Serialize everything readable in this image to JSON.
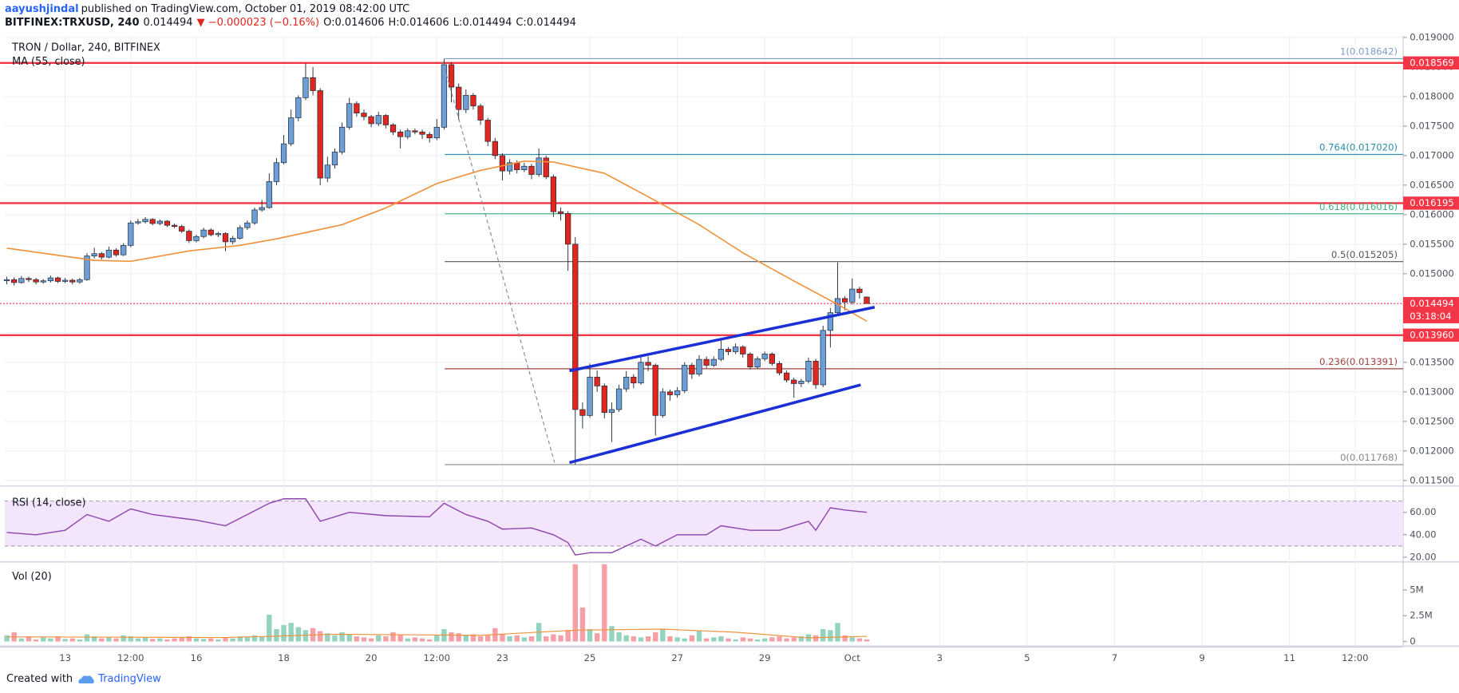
{
  "header": {
    "author": "aayushjindal",
    "published": "published on TradingView.com, October 01, 2019 08:42:00 UTC",
    "symbol": "BITFINEX:TRXUSD, 240",
    "last": "0.014494",
    "change": "▼ −0.000023 (−0.16%)",
    "ohlc": [
      "O:0.014606",
      "H:0.014606",
      "L:0.014494",
      "C:0.014494"
    ]
  },
  "footer": {
    "text": "Created with",
    "logo": "TradingView"
  },
  "chart_data": {
    "type": "candlestick",
    "title": "TRON / Dollar, 240, BITFINEX",
    "ma_label": "MA (55, close)",
    "up_color": "#6d9fd6",
    "down_color": "#e0261f",
    "xlim": [
      -0.3,
      191.6
    ],
    "xticks": [
      {
        "value": 8,
        "label": "13"
      },
      {
        "value": 17,
        "label": "12:00"
      },
      {
        "value": 26,
        "label": "16"
      },
      {
        "value": 38,
        "label": "18"
      },
      {
        "value": 50,
        "label": "20"
      },
      {
        "value": 59,
        "label": "12:00"
      },
      {
        "value": 68,
        "label": "23"
      },
      {
        "value": 80,
        "label": "25"
      },
      {
        "value": 92,
        "label": "27"
      },
      {
        "value": 104,
        "label": "29"
      },
      {
        "value": 116,
        "label": "Oct"
      },
      {
        "value": 128,
        "label": "3"
      },
      {
        "value": 140,
        "label": "5"
      },
      {
        "value": 152,
        "label": "7"
      },
      {
        "value": 164,
        "label": "9"
      },
      {
        "value": 176,
        "label": "11"
      },
      {
        "value": 185,
        "label": "12:00"
      }
    ],
    "ylim": [
      0.011421,
      0.019032
    ],
    "yticks": [
      {
        "value": 0.0115,
        "label": "0.011500"
      },
      {
        "value": 0.012,
        "label": "0.012000"
      },
      {
        "value": 0.0125,
        "label": "0.012500"
      },
      {
        "value": 0.013,
        "label": "0.013000"
      },
      {
        "value": 0.0135,
        "label": "0.013500"
      },
      {
        "value": 0.014,
        "label": "0.014000"
      },
      {
        "value": 0.0145,
        "label": "0.014500"
      },
      {
        "value": 0.015,
        "label": "0.015000"
      },
      {
        "value": 0.0155,
        "label": "0.015500"
      },
      {
        "value": 0.016,
        "label": "0.016000"
      },
      {
        "value": 0.0165,
        "label": "0.016500"
      },
      {
        "value": 0.017,
        "label": "0.017000"
      },
      {
        "value": 0.0175,
        "label": "0.017500"
      },
      {
        "value": 0.018,
        "label": "0.018000"
      },
      {
        "value": 0.0185,
        "label": "0.018500"
      },
      {
        "value": 0.019,
        "label": "0.019000"
      }
    ],
    "grid": true,
    "ohlc": [
      [
        0.01488,
        0.01495,
        0.01482,
        0.0149
      ],
      [
        0.0149,
        0.01494,
        0.0148,
        0.01485
      ],
      [
        0.01485,
        0.01496,
        0.01483,
        0.01492
      ],
      [
        0.01492,
        0.01495,
        0.01486,
        0.0149
      ],
      [
        0.0149,
        0.01493,
        0.01482,
        0.01486
      ],
      [
        0.01486,
        0.01491,
        0.01483,
        0.01488
      ],
      [
        0.01488,
        0.01497,
        0.01485,
        0.01493
      ],
      [
        0.01493,
        0.01495,
        0.01484,
        0.01487
      ],
      [
        0.01487,
        0.01493,
        0.01484,
        0.01489
      ],
      [
        0.01489,
        0.01492,
        0.01482,
        0.01486
      ],
      [
        0.01486,
        0.01493,
        0.01483,
        0.0149
      ],
      [
        0.0149,
        0.01535,
        0.01488,
        0.0153
      ],
      [
        0.0153,
        0.01544,
        0.01526,
        0.01534
      ],
      [
        0.01534,
        0.01537,
        0.01524,
        0.01528
      ],
      [
        0.01528,
        0.01546,
        0.01526,
        0.0154
      ],
      [
        0.0154,
        0.01543,
        0.01529,
        0.01532
      ],
      [
        0.01532,
        0.01552,
        0.0153,
        0.01548
      ],
      [
        0.01548,
        0.0159,
        0.01545,
        0.01586
      ],
      [
        0.01586,
        0.01593,
        0.01583,
        0.01588
      ],
      [
        0.01588,
        0.01596,
        0.01585,
        0.01592
      ],
      [
        0.01592,
        0.01594,
        0.01582,
        0.01585
      ],
      [
        0.01585,
        0.01592,
        0.01582,
        0.01589
      ],
      [
        0.01589,
        0.01591,
        0.01579,
        0.01582
      ],
      [
        0.01582,
        0.01585,
        0.01577,
        0.0158
      ],
      [
        0.0158,
        0.01583,
        0.01569,
        0.01572
      ],
      [
        0.01572,
        0.01575,
        0.01552,
        0.01556
      ],
      [
        0.01556,
        0.01566,
        0.01553,
        0.01563
      ],
      [
        0.01563,
        0.01578,
        0.0156,
        0.01574
      ],
      [
        0.01574,
        0.01577,
        0.01563,
        0.01566
      ],
      [
        0.01566,
        0.01571,
        0.01562,
        0.01568
      ],
      [
        0.01568,
        0.0157,
        0.01538,
        0.01554
      ],
      [
        0.01554,
        0.01564,
        0.0155,
        0.0156
      ],
      [
        0.0156,
        0.01582,
        0.01558,
        0.01578
      ],
      [
        0.01578,
        0.0159,
        0.01574,
        0.01586
      ],
      [
        0.01586,
        0.01612,
        0.01583,
        0.01608
      ],
      [
        0.01608,
        0.01625,
        0.01605,
        0.01612
      ],
      [
        0.01612,
        0.0167,
        0.0161,
        0.01656
      ],
      [
        0.01656,
        0.01696,
        0.0165,
        0.01688
      ],
      [
        0.01688,
        0.01735,
        0.01685,
        0.0172
      ],
      [
        0.0172,
        0.01778,
        0.01716,
        0.01764
      ],
      [
        0.01764,
        0.01802,
        0.01758,
        0.01798
      ],
      [
        0.01798,
        0.01856,
        0.01794,
        0.01832
      ],
      [
        0.01832,
        0.0185,
        0.01802,
        0.0181
      ],
      [
        0.0181,
        0.01814,
        0.0165,
        0.01662
      ],
      [
        0.01662,
        0.01698,
        0.01655,
        0.01684
      ],
      [
        0.01684,
        0.01712,
        0.01678,
        0.01706
      ],
      [
        0.01706,
        0.01756,
        0.01702,
        0.01748
      ],
      [
        0.01748,
        0.01798,
        0.01744,
        0.01788
      ],
      [
        0.01788,
        0.01792,
        0.01766,
        0.01772
      ],
      [
        0.01772,
        0.01778,
        0.0176,
        0.01766
      ],
      [
        0.01766,
        0.01769,
        0.01748,
        0.01754
      ],
      [
        0.01754,
        0.01774,
        0.0175,
        0.01768
      ],
      [
        0.01768,
        0.0177,
        0.01746,
        0.01752
      ],
      [
        0.01752,
        0.01755,
        0.01735,
        0.0174
      ],
      [
        0.0174,
        0.01744,
        0.01712,
        0.01732
      ],
      [
        0.01732,
        0.01746,
        0.01728,
        0.01742
      ],
      [
        0.01742,
        0.01746,
        0.01736,
        0.0174
      ],
      [
        0.0174,
        0.01744,
        0.01728,
        0.01736
      ],
      [
        0.01736,
        0.0174,
        0.01722,
        0.0173
      ],
      [
        0.0173,
        0.01762,
        0.01726,
        0.01748
      ],
      [
        0.01748,
        0.018642,
        0.01744,
        0.01854
      ],
      [
        0.01854,
        0.01858,
        0.0179,
        0.01816
      ],
      [
        0.01816,
        0.01822,
        0.0176,
        0.01778
      ],
      [
        0.01778,
        0.01812,
        0.01772,
        0.01802
      ],
      [
        0.01802,
        0.01806,
        0.01778,
        0.01784
      ],
      [
        0.01784,
        0.01788,
        0.01752,
        0.0176
      ],
      [
        0.0176,
        0.01764,
        0.01716,
        0.01724
      ],
      [
        0.01724,
        0.0173,
        0.01694,
        0.017
      ],
      [
        0.017,
        0.01704,
        0.01658,
        0.01674
      ],
      [
        0.01674,
        0.01694,
        0.01668,
        0.01688
      ],
      [
        0.01688,
        0.01692,
        0.0167,
        0.01676
      ],
      [
        0.01676,
        0.01688,
        0.01672,
        0.01682
      ],
      [
        0.01682,
        0.01686,
        0.0166,
        0.01668
      ],
      [
        0.01668,
        0.01712,
        0.01664,
        0.01696
      ],
      [
        0.01696,
        0.017,
        0.0166,
        0.01664
      ],
      [
        0.01664,
        0.01668,
        0.01596,
        0.01605
      ],
      [
        0.01605,
        0.01612,
        0.0159,
        0.01602
      ],
      [
        0.01602,
        0.01606,
        0.01505,
        0.0155
      ],
      [
        0.0155,
        0.01562,
        0.011768,
        0.0127
      ],
      [
        0.0127,
        0.01282,
        0.01238,
        0.0126
      ],
      [
        0.0126,
        0.01348,
        0.01256,
        0.01325
      ],
      [
        0.01325,
        0.01336,
        0.013,
        0.0131
      ],
      [
        0.0131,
        0.01314,
        0.01255,
        0.01265
      ],
      [
        0.01265,
        0.01282,
        0.01215,
        0.0127
      ],
      [
        0.0127,
        0.01312,
        0.01266,
        0.01305
      ],
      [
        0.01305,
        0.01335,
        0.013,
        0.01325
      ],
      [
        0.01325,
        0.0133,
        0.01306,
        0.01315
      ],
      [
        0.01315,
        0.0136,
        0.01312,
        0.0135
      ],
      [
        0.0135,
        0.0136,
        0.01335,
        0.01345
      ],
      [
        0.01345,
        0.01348,
        0.01226,
        0.0126
      ],
      [
        0.0126,
        0.01306,
        0.01256,
        0.013
      ],
      [
        0.013,
        0.01304,
        0.01285,
        0.01295
      ],
      [
        0.01295,
        0.01308,
        0.0129,
        0.01302
      ],
      [
        0.01302,
        0.0135,
        0.01298,
        0.01345
      ],
      [
        0.01345,
        0.01349,
        0.01322,
        0.0133
      ],
      [
        0.0133,
        0.01362,
        0.01326,
        0.01355
      ],
      [
        0.01355,
        0.0136,
        0.0134,
        0.01345
      ],
      [
        0.01345,
        0.0136,
        0.01342,
        0.01355
      ],
      [
        0.01355,
        0.01388,
        0.01352,
        0.01372
      ],
      [
        0.01372,
        0.01376,
        0.01362,
        0.01368
      ],
      [
        0.01368,
        0.01382,
        0.01364,
        0.01376
      ],
      [
        0.01376,
        0.01379,
        0.01358,
        0.01364
      ],
      [
        0.01364,
        0.01367,
        0.01338,
        0.01342
      ],
      [
        0.01342,
        0.0136,
        0.01339,
        0.01356
      ],
      [
        0.01356,
        0.01368,
        0.01352,
        0.01364
      ],
      [
        0.01364,
        0.01367,
        0.01344,
        0.01348
      ],
      [
        0.01348,
        0.01352,
        0.01328,
        0.01332
      ],
      [
        0.01332,
        0.01336,
        0.01316,
        0.0132
      ],
      [
        0.0132,
        0.01324,
        0.0129,
        0.01314
      ],
      [
        0.01314,
        0.01322,
        0.01308,
        0.01318
      ],
      [
        0.01318,
        0.01358,
        0.01314,
        0.01352
      ],
      [
        0.01352,
        0.01356,
        0.01305,
        0.01312
      ],
      [
        0.01312,
        0.01412,
        0.01308,
        0.01404
      ],
      [
        0.01404,
        0.01442,
        0.01375,
        0.01434
      ],
      [
        0.01434,
        0.01519,
        0.0143,
        0.01458
      ],
      [
        0.01458,
        0.01462,
        0.01438,
        0.01452
      ],
      [
        0.01452,
        0.01492,
        0.01448,
        0.01474
      ],
      [
        0.01474,
        0.01478,
        0.01458,
        0.01468
      ],
      [
        0.014606,
        0.014606,
        0.014494,
        0.014494
      ]
    ],
    "ma": {
      "color": "#f0923a",
      "x": [
        0,
        12,
        17,
        25,
        32,
        37,
        46,
        52,
        59,
        65,
        71,
        75,
        82,
        88,
        95,
        101,
        108,
        114,
        118
      ],
      "values": [
        0.015433,
        0.015226,
        0.01521,
        0.015385,
        0.01548,
        0.01559,
        0.01583,
        0.016114,
        0.016527,
        0.016749,
        0.016907,
        0.016891,
        0.0167,
        0.016304,
        0.01583,
        0.015353,
        0.014877,
        0.014481,
        0.014196
      ]
    },
    "level_color": "#f23645",
    "levels": [
      0.018569,
      0.016195,
      {
        "value": 0.01396,
        "label": "0.013960"
      }
    ],
    "last_price": 0.014494,
    "countdown": "03:18:04",
    "fib": [
      {
        "value": 0.018642,
        "label": "1(0.018642)",
        "color": "#7f9cc6"
      },
      {
        "value": 0.01702,
        "label": "0.764(0.017020)",
        "color": "#2a8ca6"
      },
      {
        "value": 0.016016,
        "label": "0.618(0.016016)",
        "color": "#3fb37f"
      },
      {
        "value": 0.015205,
        "label": "0.5(0.015205)",
        "color": "#555555"
      },
      {
        "value": 0.013391,
        "label": "0.236(0.013391)",
        "color": "#a0413c"
      },
      {
        "value": 0.011768,
        "label": "0(0.011768)",
        "color": "#888888"
      }
    ],
    "rsi": {
      "label": "RSI (14, close)",
      "color": "#8e44ad",
      "band_color": "#f3e5fb",
      "ylim": [
        17.5,
        81.7
      ],
      "yticks": [
        {
          "value": 20,
          "label": "20.00"
        },
        {
          "value": 40,
          "label": "40.00"
        },
        {
          "value": 60,
          "label": "60.00"
        }
      ],
      "band": [
        30,
        70
      ],
      "x": [
        0,
        4,
        8,
        11,
        14,
        17,
        20,
        26,
        30,
        33,
        36,
        38,
        41,
        43,
        47,
        52,
        58,
        60,
        63,
        66,
        68,
        72,
        75,
        77,
        78,
        80,
        83,
        87,
        89,
        92,
        96,
        98,
        102,
        106,
        110,
        111,
        113,
        115,
        118
      ],
      "values": [
        42,
        40,
        44,
        58,
        52,
        63,
        58,
        53,
        48,
        58,
        68,
        72,
        72,
        52,
        60,
        57,
        56,
        68,
        58,
        52,
        45,
        46,
        40,
        33,
        22,
        24,
        24,
        36,
        30,
        40,
        40,
        48,
        44,
        44,
        52,
        44,
        64,
        62,
        60
      ]
    },
    "volume": {
      "label": "Vol (20)",
      "up_color": "#93d3c0",
      "down_color": "#f4a0a6",
      "ylim": [
        -454500,
        7545000
      ],
      "yticks": [
        0,
        {
          "value": 2500000,
          "label": "2.5M"
        },
        {
          "value": 5000000,
          "label": "5M"
        }
      ],
      "values": [
        600000,
        900000,
        300000,
        500000,
        200000,
        400000,
        300000,
        500000,
        250000,
        300000,
        200000,
        700000,
        500000,
        300000,
        400000,
        300000,
        600000,
        500000,
        300000,
        400000,
        250000,
        300000,
        200000,
        300000,
        400000,
        500000,
        300000,
        250000,
        300000,
        200000,
        400000,
        300000,
        500000,
        400000,
        600000,
        500000,
        2600000,
        1200000,
        1600000,
        1800000,
        1400000,
        1100000,
        1300000,
        1000000,
        800000,
        600000,
        900000,
        700000,
        500000,
        400000,
        300000,
        600000,
        500000,
        900000,
        700000,
        300000,
        400000,
        300000,
        200000,
        600000,
        1200000,
        900000,
        800000,
        600000,
        700000,
        500000,
        600000,
        1300000,
        700000,
        500000,
        600000,
        400000,
        500000,
        1800000,
        500000,
        700000,
        600000,
        1100000,
        7500000,
        3300000,
        1200000,
        800000,
        7500000,
        1500000,
        900000,
        600000,
        500000,
        400000,
        500000,
        900000,
        1200000,
        500000,
        400000,
        300000,
        600000,
        1000000,
        300000,
        400000,
        500000,
        300000,
        200000,
        400000,
        300000,
        200000,
        300000,
        400000,
        500000,
        300000,
        400000,
        500000,
        700000,
        600000,
        1200000,
        1100000,
        1800000,
        600000,
        400000,
        300000,
        200000
      ],
      "ma": {
        "color": "#f0923a",
        "x": [
          0,
          30,
          36,
          45,
          55,
          65,
          78,
          90,
          100,
          110,
          118
        ],
        "values": [
          450000,
          380000,
          500000,
          700000,
          650000,
          600000,
          1100000,
          1200000,
          900000,
          350000,
          500000
        ]
      }
    }
  }
}
